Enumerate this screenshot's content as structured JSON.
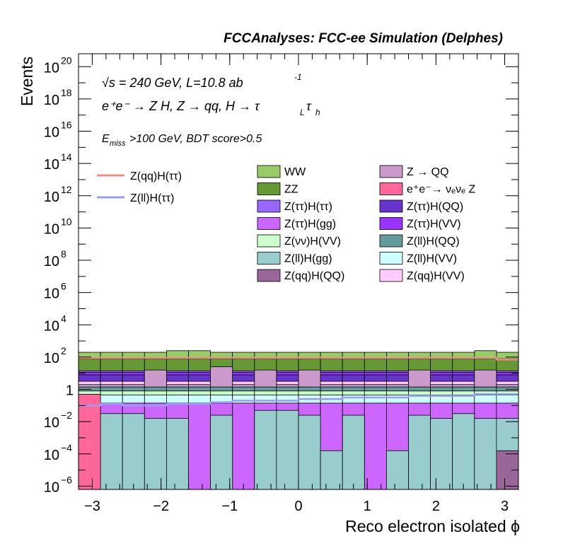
{
  "chart_data": {
    "type": "histogram-stacked",
    "title": "FCCAnalyses: FCC-ee Simulation (Delphes)",
    "xlabel": "Reco electron isolated ϕ",
    "ylabel": "Events",
    "y_scale": "log",
    "xlim": [
      -3.2,
      3.2
    ],
    "ylim_log10": [
      -6.2,
      20.8
    ],
    "x_ticks": [
      -3,
      -2,
      -1,
      0,
      1,
      2,
      3
    ],
    "x_tick_labels": [
      "−3",
      "−2",
      "−1",
      "0",
      "1",
      "2",
      "3"
    ],
    "y_ticks": [
      {
        "base": "10",
        "exp": "−6",
        "log": -6
      },
      {
        "base": "10",
        "exp": "−4",
        "log": -4
      },
      {
        "base": "10",
        "exp": "−2",
        "log": -2
      },
      {
        "base": "1",
        "exp": "",
        "log": 0
      },
      {
        "base": "10",
        "exp": "2",
        "log": 2
      },
      {
        "base": "10",
        "exp": "4",
        "log": 4
      },
      {
        "base": "10",
        "exp": "6",
        "log": 6
      },
      {
        "base": "10",
        "exp": "8",
        "log": 8
      },
      {
        "base": "10",
        "exp": "10",
        "log": 10
      },
      {
        "base": "10",
        "exp": "12",
        "log": 12
      },
      {
        "base": "10",
        "exp": "14",
        "log": 14
      },
      {
        "base": "10",
        "exp": "16",
        "log": 16
      },
      {
        "base": "10",
        "exp": "18",
        "log": 18
      },
      {
        "base": "10",
        "exp": "20",
        "log": 20
      }
    ],
    "annotations": {
      "energy": "√s = 240 GeV, L=10.8 ab",
      "energy_sup": "-1",
      "process": "e⁺e⁻ → Z H, Z → qq, H → τ",
      "process_sub_L": "L",
      "process_tau2": "τ",
      "process_sub_h": "h",
      "cut_E": "E",
      "cut_sub": "miss",
      "cut_rest": ">100 GeV, BDT score>0.5"
    },
    "bins": 20,
    "legend_lines": [
      {
        "label": "Z(qq)H(ττ)",
        "color": "#f08c8c"
      },
      {
        "label": "Z(ll)H(ττ)",
        "color": "#9b9bf5"
      }
    ],
    "legend_boxes": [
      {
        "label": "WW",
        "color": "#99cc66"
      },
      {
        "label": "Z → QQ",
        "color": "#cc99cc"
      },
      {
        "label": "ZZ",
        "color": "#669933"
      },
      {
        "label": "e⁺e⁻→ νₑνₑ Z",
        "color": "#ff6699"
      },
      {
        "label": "Z(ττ)H(ττ)",
        "color": "#9966ff"
      },
      {
        "label": "Z(ττ)H(QQ)",
        "color": "#6633cc"
      },
      {
        "label": "Z(ττ)H(gg)",
        "color": "#cc66ff"
      },
      {
        "label": "Z(ττ)H(VV)",
        "color": "#9933ff"
      },
      {
        "label": "Z(νν)H(VV)",
        "color": "#ccffcc"
      },
      {
        "label": "Z(ll)H(QQ)",
        "color": "#669999"
      },
      {
        "label": "Z(ll)H(gg)",
        "color": "#99cccc"
      },
      {
        "label": "Z(ll)H(VV)",
        "color": "#ccffff"
      },
      {
        "label": "Z(qq)H(QQ)",
        "color": "#996699"
      },
      {
        "label": "Z(qq)H(VV)",
        "color": "#ffccff"
      }
    ],
    "stack_series_log10": [
      {
        "name": "Z(ll)H(gg)",
        "color": "#99cccc",
        "values": [
          -1.8,
          -1.5,
          -1.5,
          -1.8,
          -1.8,
          -6.2,
          -1.6,
          -6.2,
          -1.3,
          -1.3,
          -1.6,
          -3.8,
          -1.6,
          -6.2,
          -3.8,
          -1.6,
          -1.8,
          -1.5,
          -1.8,
          -1.8
        ]
      },
      {
        "name": "Z(ττ)H(gg)",
        "color": "#cc66ff",
        "values": [
          -0.85,
          -0.85,
          -0.85,
          -0.85,
          -0.85,
          -0.85,
          -0.85,
          -0.85,
          -0.85,
          -0.85,
          -0.85,
          -0.85,
          -0.85,
          -0.85,
          -0.85,
          -0.85,
          -0.85,
          -0.85,
          -0.85,
          -0.85
        ]
      },
      {
        "name": "Z(ll)H(VV)",
        "color": "#ccffff",
        "values": [
          -0.35,
          -0.35,
          -0.35,
          -0.35,
          -0.35,
          -0.35,
          -0.35,
          -0.35,
          -0.35,
          -0.35,
          -0.35,
          -0.35,
          -0.35,
          -0.35,
          -0.35,
          -0.35,
          -0.35,
          -0.35,
          -0.35,
          -0.35
        ]
      },
      {
        "name": "Z(νν)H(VV)",
        "color": "#ccffcc",
        "values": [
          -0.1,
          -0.1,
          -0.1,
          -0.1,
          -0.1,
          -0.1,
          -0.1,
          -0.1,
          -0.1,
          -0.1,
          -0.1,
          -0.1,
          -0.1,
          -0.1,
          -0.1,
          -0.1,
          -0.1,
          -0.1,
          -0.1,
          -0.1
        ]
      },
      {
        "name": "Z(ll)H(QQ)",
        "color": "#669999",
        "values": [
          0.15,
          0.15,
          0.15,
          0.15,
          0.15,
          0.15,
          0.15,
          0.15,
          0.15,
          0.15,
          0.15,
          0.15,
          0.15,
          0.15,
          0.15,
          0.15,
          0.15,
          0.15,
          0.15,
          0.15
        ]
      },
      {
        "name": "Z → QQ",
        "color": "#cc99cc",
        "values": [
          0.3,
          0.3,
          0.3,
          0.3,
          0.3,
          0.3,
          0.3,
          0.3,
          0.3,
          0.3,
          0.3,
          0.3,
          0.3,
          0.3,
          0.3,
          0.3,
          0.3,
          0.3,
          0.3,
          0.3
        ]
      },
      {
        "name": "Z(qq)H(VV)",
        "color": "#ffccff",
        "values": [
          0.5,
          0.5,
          0.5,
          0.5,
          0.5,
          0.5,
          0.5,
          0.5,
          0.5,
          0.5,
          0.5,
          0.5,
          0.5,
          0.5,
          0.5,
          0.5,
          0.5,
          0.5,
          0.5,
          0.5
        ]
      },
      {
        "name": "Z(ττ)H(QQ)",
        "color": "#6633cc",
        "values": [
          0.9,
          0.9,
          0.9,
          0.9,
          0.9,
          0.9,
          0.9,
          0.9,
          0.9,
          0.9,
          0.9,
          0.9,
          0.9,
          0.9,
          0.9,
          0.9,
          0.9,
          0.9,
          0.9,
          0.9
        ]
      },
      {
        "name": "Z(ττ)H(VV)",
        "color": "#9933ff",
        "values": [
          1.05,
          1.05,
          1.05,
          1.05,
          1.05,
          1.05,
          1.05,
          1.05,
          1.05,
          1.05,
          1.05,
          1.05,
          1.05,
          1.05,
          1.05,
          1.05,
          1.05,
          1.05,
          1.05,
          1.05
        ]
      },
      {
        "name": "Z(ττ)H(ττ)",
        "color": "#9966ff",
        "values": [
          1.15,
          1.15,
          1.15,
          1.15,
          1.15,
          1.15,
          1.15,
          1.15,
          1.15,
          1.15,
          1.15,
          1.15,
          1.15,
          1.15,
          1.15,
          1.15,
          1.15,
          1.15,
          1.15,
          1.15
        ]
      },
      {
        "name": "ZZ",
        "color": "#669933",
        "values": [
          1.9,
          1.9,
          1.9,
          1.9,
          1.9,
          1.9,
          1.9,
          1.9,
          1.9,
          1.9,
          1.9,
          1.9,
          1.9,
          1.9,
          1.9,
          1.9,
          1.9,
          1.9,
          1.9,
          1.9
        ]
      },
      {
        "name": "WW",
        "color": "#99cc66",
        "values": [
          2.3,
          2.3,
          2.3,
          2.3,
          2.4,
          2.4,
          2.3,
          2.3,
          2.3,
          2.3,
          2.3,
          2.3,
          2.3,
          2.3,
          2.3,
          2.3,
          2.3,
          2.3,
          2.4,
          2.3
        ]
      }
    ],
    "zqq_spikes_log10": [
      {
        "bin": 3,
        "low": 0.15,
        "high": 1.2
      },
      {
        "bin": 6,
        "low": 0.15,
        "high": 1.4
      },
      {
        "bin": 8,
        "low": 0.15,
        "high": 1.2
      },
      {
        "bin": 10,
        "low": 0.15,
        "high": 1.2
      },
      {
        "bin": 15,
        "low": 0.15,
        "high": 1.2
      },
      {
        "bin": 18,
        "low": 0.15,
        "high": 1.2
      }
    ],
    "nuenue_bin0_log10": [
      -6.2,
      -0.3
    ],
    "zqqhqq_last_bin_log10": [
      -6.2,
      -3.8
    ],
    "signal_lines_log10": [
      {
        "name": "Z(qq)H(ττ)",
        "color": "#f08c8c",
        "values": [
          1.95,
          1.95,
          1.95,
          1.95,
          1.95,
          1.95,
          1.95,
          1.95,
          1.95,
          1.95,
          1.95,
          1.95,
          1.95,
          1.95,
          1.95,
          1.95,
          1.95,
          1.95,
          1.95,
          1.85
        ]
      },
      {
        "name": "Z(ll)H(ττ)",
        "color": "#9b9bf5",
        "values": [
          -1.0,
          -0.9,
          -1.0,
          -1.0,
          -0.9,
          -0.9,
          -0.8,
          -0.7,
          -0.7,
          -0.7,
          -0.6,
          -0.6,
          -0.5,
          -0.5,
          -0.5,
          -0.4,
          -0.4,
          -0.4,
          -0.3,
          -0.3
        ]
      }
    ]
  }
}
